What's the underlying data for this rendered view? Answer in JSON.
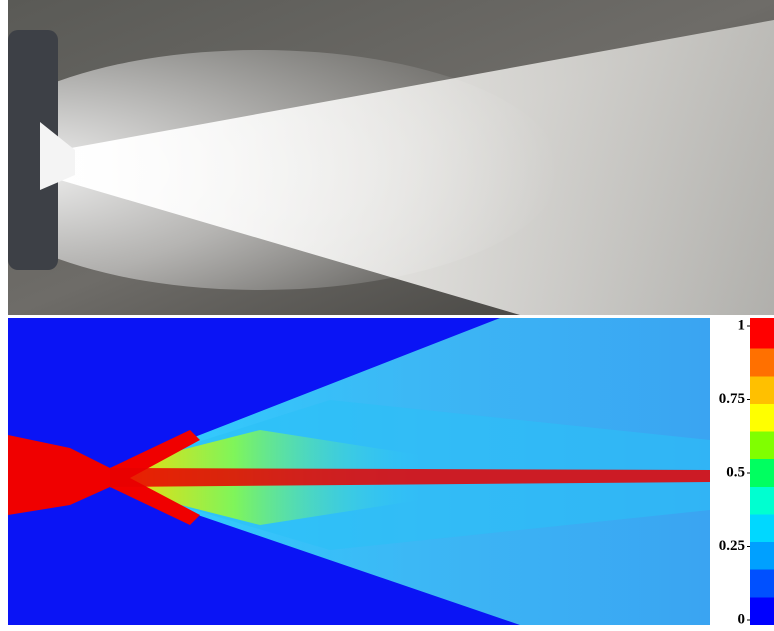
{
  "colorbar": {
    "ticks": [
      0,
      0.25,
      0.5,
      0.75,
      1
    ]
  }
}
